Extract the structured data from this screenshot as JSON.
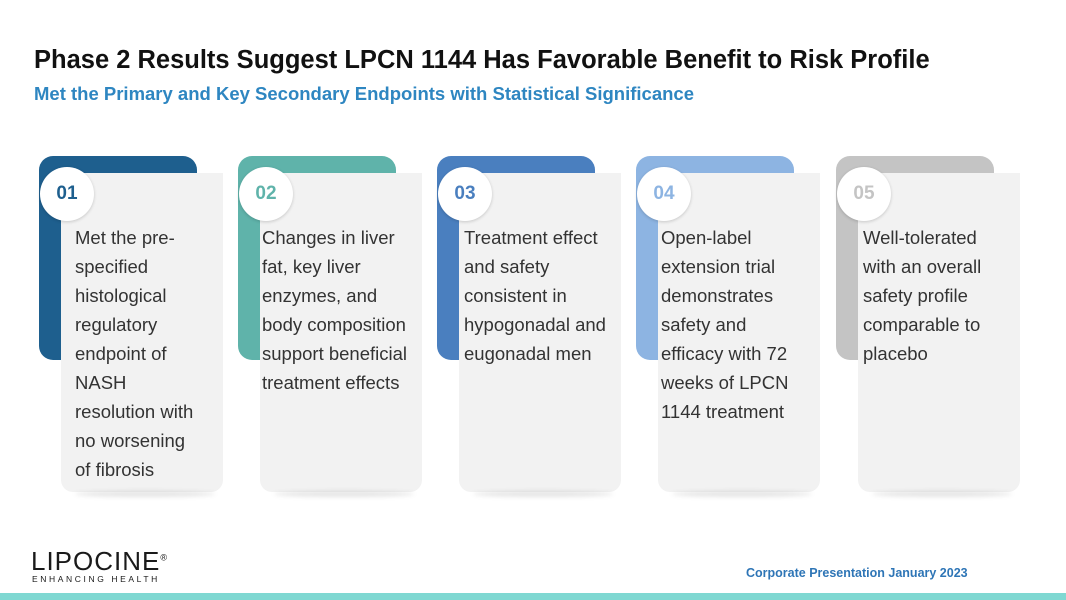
{
  "title": "Phase 2 Results Suggest LPCN 1144 Has Favorable Benefit to Risk Profile",
  "subtitle": "Met the Primary and Key Secondary Endpoints with Statistical Significance",
  "cards": [
    {
      "number": "01",
      "color": "#1e5f8e",
      "lines": [
        "Met the pre-",
        "specified",
        "histological",
        "regulatory",
        "endpoint of",
        "NASH",
        "resolution with",
        "no worsening",
        "of fibrosis"
      ]
    },
    {
      "number": "02",
      "color": "#5fb3aa",
      "lines": [
        "Changes in liver",
        "fat, key liver",
        "enzymes, and",
        "body composition",
        "support beneficial",
        "treatment effects"
      ]
    },
    {
      "number": "03",
      "color": "#4a7fbf",
      "lines": [
        "Treatment effect",
        "and safety",
        "consistent in",
        "hypogonadal and",
        "eugonadal men"
      ]
    },
    {
      "number": "04",
      "color": "#8db4e2",
      "lines": [
        "Open-label",
        "extension trial",
        "demonstrates",
        "safety and",
        "efficacy with 72",
        "weeks of LPCN",
        "1144 treatment"
      ]
    },
    {
      "number": "05",
      "color": "#c4c4c4",
      "lines": [
        "Well-tolerated",
        "with an overall",
        "safety profile",
        "comparable to",
        "placebo"
      ]
    }
  ],
  "logo": {
    "name": "LIPOCINE",
    "registered": "®",
    "tagline": "ENHANCING HEALTH"
  },
  "footer": "Corporate Presentation January 2023"
}
